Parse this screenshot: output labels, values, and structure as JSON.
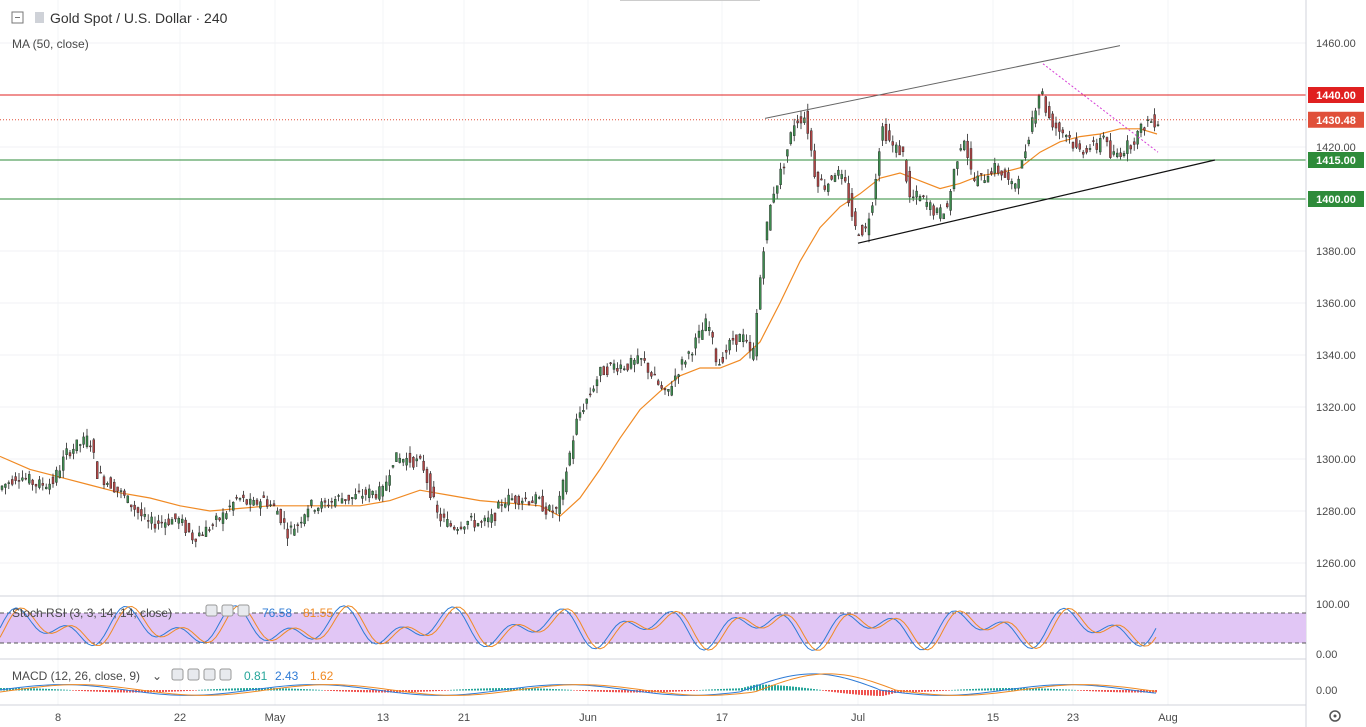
{
  "header": {
    "symbol_title": "Gold Spot / U.S. Dollar · 240",
    "ma_label": "MA (50, close)"
  },
  "colors": {
    "up": "#3d8a4e",
    "down": "#b04545",
    "ma": "#f08a24",
    "resistance": "#e02020",
    "support": "#2e8b3a",
    "current": "#e0503a",
    "rsi_k": "#2e7bd6",
    "rsi_d": "#f08a24",
    "rsi_band": "#e1c6f5",
    "macd_line": "#2e7bd6",
    "signal_line": "#f08a24",
    "hist_pos": "#26a69a",
    "hist_neg": "#ef5350"
  },
  "stoch_rsi": {
    "label": "Stoch RSI (3, 3, 14, 14, close)",
    "k_value": "76.58",
    "d_value": "81.55",
    "ticks": [
      "100.00",
      "0.00"
    ]
  },
  "macd": {
    "label": "MACD (12, 26, close, 9)",
    "hist_value": "0.81",
    "macd_value": "2.43",
    "signal_value": "1.62",
    "ticks": [
      "0.00"
    ]
  },
  "chart_data": {
    "type": "candlestick",
    "price_ticks": [
      "1460.00",
      "1440.00",
      "1420.00",
      "1400.00",
      "1380.00",
      "1360.00",
      "1340.00",
      "1320.00",
      "1300.00",
      "1280.00",
      "1260.00"
    ],
    "ylim": [
      1252,
      1468
    ],
    "x_ticks": [
      "8",
      "22",
      "May",
      "13",
      "21",
      "Jun",
      "17",
      "Jul",
      "15",
      "23",
      "Aug"
    ],
    "horizontal_levels": [
      {
        "label": "1440.00",
        "value": 1440,
        "kind": "resistance"
      },
      {
        "label": "1430.48",
        "value": 1430.48,
        "kind": "current"
      },
      {
        "label": "1415.00",
        "value": 1415,
        "kind": "support"
      },
      {
        "label": "1400.00",
        "value": 1400,
        "kind": "support"
      }
    ],
    "price_path": [
      [
        0,
        1288
      ],
      [
        20,
        1294
      ],
      [
        40,
        1290
      ],
      [
        55,
        1291
      ],
      [
        70,
        1303
      ],
      [
        92,
        1308
      ],
      [
        100,
        1294
      ],
      [
        115,
        1290
      ],
      [
        130,
        1284
      ],
      [
        140,
        1280
      ],
      [
        150,
        1275
      ],
      [
        165,
        1276
      ],
      [
        180,
        1277
      ],
      [
        195,
        1270
      ],
      [
        210,
        1273
      ],
      [
        225,
        1278
      ],
      [
        240,
        1285
      ],
      [
        255,
        1282
      ],
      [
        265,
        1285
      ],
      [
        280,
        1280
      ],
      [
        290,
        1272
      ],
      [
        300,
        1275
      ],
      [
        310,
        1282
      ],
      [
        325,
        1282
      ],
      [
        340,
        1285
      ],
      [
        355,
        1285
      ],
      [
        370,
        1287
      ],
      [
        385,
        1287
      ],
      [
        395,
        1300
      ],
      [
        410,
        1300
      ],
      [
        425,
        1298
      ],
      [
        440,
        1278
      ],
      [
        455,
        1274
      ],
      [
        470,
        1276
      ],
      [
        485,
        1275
      ],
      [
        495,
        1277
      ],
      [
        505,
        1284
      ],
      [
        520,
        1285
      ],
      [
        540,
        1284
      ],
      [
        550,
        1280
      ],
      [
        560,
        1280
      ],
      [
        570,
        1298
      ],
      [
        580,
        1316
      ],
      [
        592,
        1325
      ],
      [
        602,
        1333
      ],
      [
        615,
        1336
      ],
      [
        630,
        1336
      ],
      [
        645,
        1338
      ],
      [
        658,
        1330
      ],
      [
        668,
        1324
      ],
      [
        680,
        1334
      ],
      [
        695,
        1343
      ],
      [
        710,
        1353
      ],
      [
        720,
        1336
      ],
      [
        735,
        1346
      ],
      [
        745,
        1347
      ],
      [
        755,
        1338
      ],
      [
        765,
        1380
      ],
      [
        775,
        1402
      ],
      [
        785,
        1412
      ],
      [
        797,
        1430
      ],
      [
        808,
        1432
      ],
      [
        818,
        1408
      ],
      [
        828,
        1405
      ],
      [
        838,
        1411
      ],
      [
        848,
        1405
      ],
      [
        858,
        1388
      ],
      [
        868,
        1388
      ],
      [
        876,
        1402
      ],
      [
        884,
        1428
      ],
      [
        895,
        1420
      ],
      [
        905,
        1418
      ],
      [
        912,
        1400
      ],
      [
        920,
        1401
      ],
      [
        930,
        1398
      ],
      [
        940,
        1394
      ],
      [
        950,
        1397
      ],
      [
        958,
        1414
      ],
      [
        966,
        1425
      ],
      [
        975,
        1407
      ],
      [
        985,
        1408
      ],
      [
        995,
        1412
      ],
      [
        1005,
        1410
      ],
      [
        1015,
        1404
      ],
      [
        1025,
        1414
      ],
      [
        1035,
        1432
      ],
      [
        1043,
        1443
      ],
      [
        1050,
        1432
      ],
      [
        1060,
        1427
      ],
      [
        1070,
        1425
      ],
      [
        1080,
        1418
      ],
      [
        1090,
        1420
      ],
      [
        1100,
        1420
      ],
      [
        1105,
        1427
      ],
      [
        1112,
        1416
      ],
      [
        1122,
        1418
      ],
      [
        1132,
        1421
      ],
      [
        1142,
        1426
      ],
      [
        1150,
        1430
      ],
      [
        1157,
        1430
      ]
    ],
    "ma50_path": [
      [
        0,
        1301
      ],
      [
        30,
        1296
      ],
      [
        60,
        1293
      ],
      [
        90,
        1290
      ],
      [
        120,
        1287
      ],
      [
        150,
        1285
      ],
      [
        180,
        1282
      ],
      [
        210,
        1280
      ],
      [
        240,
        1281
      ],
      [
        270,
        1282
      ],
      [
        300,
        1282
      ],
      [
        330,
        1282
      ],
      [
        360,
        1282
      ],
      [
        390,
        1284
      ],
      [
        420,
        1288
      ],
      [
        450,
        1286
      ],
      [
        480,
        1284
      ],
      [
        510,
        1283
      ],
      [
        540,
        1282
      ],
      [
        560,
        1278
      ],
      [
        580,
        1285
      ],
      [
        600,
        1296
      ],
      [
        620,
        1308
      ],
      [
        640,
        1319
      ],
      [
        660,
        1326
      ],
      [
        680,
        1332
      ],
      [
        700,
        1335
      ],
      [
        720,
        1335
      ],
      [
        740,
        1338
      ],
      [
        760,
        1345
      ],
      [
        780,
        1360
      ],
      [
        800,
        1376
      ],
      [
        820,
        1389
      ],
      [
        840,
        1397
      ],
      [
        860,
        1402
      ],
      [
        880,
        1408
      ],
      [
        900,
        1410
      ],
      [
        920,
        1407
      ],
      [
        940,
        1404
      ],
      [
        960,
        1406
      ],
      [
        980,
        1409
      ],
      [
        1000,
        1410
      ],
      [
        1020,
        1412
      ],
      [
        1040,
        1418
      ],
      [
        1060,
        1422
      ],
      [
        1080,
        1424
      ],
      [
        1100,
        1425
      ],
      [
        1120,
        1427
      ],
      [
        1140,
        1427
      ],
      [
        1157,
        1425
      ]
    ],
    "channel_lines": [
      {
        "name": "upper",
        "from": [
          765,
          1431
        ],
        "to": [
          1120,
          1459
        ]
      },
      {
        "name": "lower",
        "from": [
          858,
          1383
        ],
        "to": [
          1215,
          1415
        ]
      },
      {
        "name": "descending",
        "from": [
          1043,
          1452
        ],
        "to": [
          1158,
          1418
        ]
      }
    ]
  }
}
